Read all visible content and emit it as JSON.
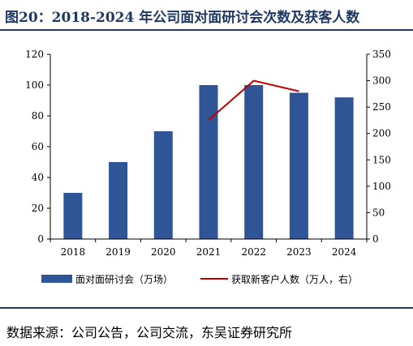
{
  "header": {
    "title": "图20：2018-2024 年公司面对面研讨会次数及获客人数"
  },
  "footer": {
    "source": "数据来源：公司公告，公司交流，东吴证券研究所"
  },
  "colors": {
    "title": "#1f3864",
    "bar": "#2f5597",
    "line": "#c00000"
  },
  "chart_data": {
    "type": "bar",
    "categories": [
      "2018",
      "2019",
      "2020",
      "2021",
      "2022",
      "2023",
      "2024"
    ],
    "series": [
      {
        "name": "面对面研讨会（万场）",
        "type": "bar",
        "axis": "left",
        "values": [
          30,
          50,
          70,
          100,
          100,
          95,
          92
        ]
      },
      {
        "name": "获取新客户人数（万人，右）",
        "type": "line",
        "axis": "right",
        "x": [
          "2021",
          "2022",
          "2023"
        ],
        "values": [
          225,
          300,
          280
        ]
      }
    ],
    "y_left": {
      "lim": [
        0,
        120
      ],
      "ticks": [
        0,
        20,
        40,
        60,
        80,
        100,
        120
      ]
    },
    "y_right": {
      "lim": [
        0,
        350
      ],
      "ticks": [
        0,
        50,
        100,
        150,
        200,
        250,
        300,
        350
      ]
    },
    "grid": false,
    "legend_position": "bottom"
  }
}
